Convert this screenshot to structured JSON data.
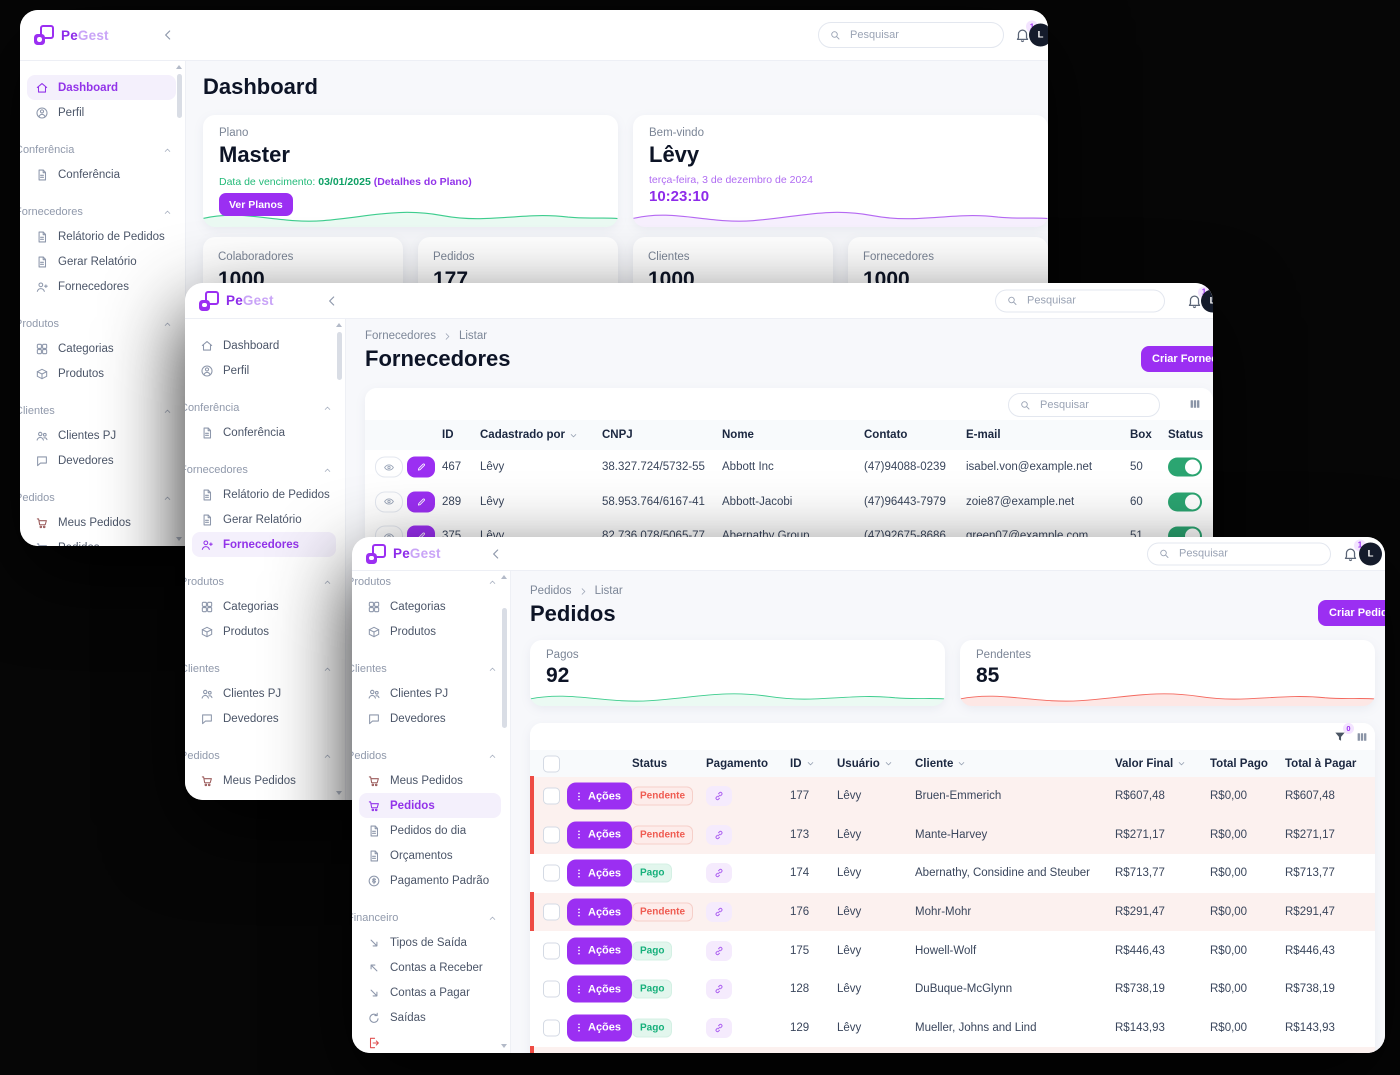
{
  "chrome": {
    "logo_bold": "Pe",
    "logo_light": "Gest",
    "search_placeholder": "Pesquisar",
    "notification_count": "1",
    "avatar_initial": "L"
  },
  "colors": {
    "accent": "#9b2ff2",
    "green": "#22ba78",
    "red": "#ee4b43",
    "toggle_green": "#2ba571",
    "spark_green": "#3ecd8e",
    "spark_purple": "#b569f2",
    "spark_red": "#f4695f"
  },
  "sidebar": {
    "groups": [
      {
        "header": null,
        "items": [
          {
            "label": "Dashboard",
            "icon": "home"
          },
          {
            "label": "Perfil",
            "icon": "user"
          }
        ]
      },
      {
        "header": "Conferência",
        "items": [
          {
            "label": "Conferência",
            "icon": "doc"
          }
        ]
      },
      {
        "header": "Fornecedores",
        "items": [
          {
            "label": "Relátorio de Pedidos",
            "icon": "doc"
          },
          {
            "label": "Gerar Relatório",
            "icon": "doc"
          },
          {
            "label": "Fornecedores",
            "icon": "user-plus"
          }
        ]
      },
      {
        "header": "Produtos",
        "items": [
          {
            "label": "Categorias",
            "icon": "grid"
          },
          {
            "label": "Produtos",
            "icon": "box"
          }
        ]
      },
      {
        "header": "Clientes",
        "items": [
          {
            "label": "Clientes PJ",
            "icon": "users"
          },
          {
            "label": "Devedores",
            "icon": "chat"
          }
        ]
      },
      {
        "header": "Pedidos",
        "items": [
          {
            "label": "Meus Pedidos",
            "icon": "cart"
          },
          {
            "label": "Pedidos",
            "icon": "cart"
          },
          {
            "label": "Pedidos do dia",
            "icon": "doc"
          },
          {
            "label": "Orçamentos",
            "icon": "doc"
          },
          {
            "label": "Pagamento Padrão",
            "icon": "coin"
          }
        ]
      },
      {
        "header": "Financeiro",
        "items": [
          {
            "label": "Tipos de Saída",
            "icon": "out"
          },
          {
            "label": "Contas a Receber",
            "icon": "in"
          },
          {
            "label": "Contas a Pagar",
            "icon": "out"
          },
          {
            "label": "Saídas",
            "icon": "refresh"
          },
          {
            "label": "",
            "icon": "exit",
            "accent": "red"
          }
        ]
      }
    ]
  },
  "dashboard_window": {
    "active_item": "Dashboard",
    "page_title": "Dashboard",
    "plan_card": {
      "label": "Plano",
      "value": "Master",
      "due_label": "Data de vencimento:",
      "due_date": "03/01/2025",
      "details_link": "(Detalhes do Plano)",
      "button_label": "Ver Planos"
    },
    "welcome_card": {
      "label": "Bem-vindo",
      "value": "Lêvy",
      "date": "terça-feira, 3 de dezembro de 2024",
      "time": "10:23:10"
    },
    "stat_cards": [
      {
        "label": "Colaboradores",
        "value": "1000"
      },
      {
        "label": "Pedidos",
        "value": "177"
      },
      {
        "label": "Clientes",
        "value": "1000"
      },
      {
        "label": "Fornecedores",
        "value": "1000"
      }
    ]
  },
  "fornecedores_window": {
    "active_item": "Fornecedores",
    "breadcrumb": {
      "parent": "Fornecedores",
      "current": "Listar"
    },
    "page_title": "Fornecedores",
    "create_button_label": "Criar Fornecedor",
    "table": {
      "search_placeholder": "Pesquisar",
      "columns": [
        "ID",
        "Cadastrado por",
        "CNPJ",
        "Nome",
        "Contato",
        "E-mail",
        "Box",
        "Status"
      ],
      "rows": [
        {
          "id": "467",
          "cadastrado_por": "Lêvy",
          "cnpj": "38.327.724/5732-55",
          "nome": "Abbott Inc",
          "contato": "(47)94088-0239",
          "email": "isabel.von@example.net",
          "box": "50",
          "status_on": true
        },
        {
          "id": "289",
          "cadastrado_por": "Lêvy",
          "cnpj": "58.953.764/6167-41",
          "nome": "Abbott-Jacobi",
          "contato": "(47)96443-7979",
          "email": "zoie87@example.net",
          "box": "60",
          "status_on": true
        },
        {
          "id": "375",
          "cadastrado_por": "Lêvy",
          "cnpj": "82.736.078/5065-77",
          "nome": "Abernathy Group",
          "contato": "(47)92675-8686",
          "email": "green07@example.com",
          "box": "51",
          "status_on": true
        }
      ]
    }
  },
  "pedidos_window": {
    "active_item": "Pedidos",
    "breadcrumb": {
      "parent": "Pedidos",
      "current": "Listar"
    },
    "page_title": "Pedidos",
    "create_button_label": "Criar Pedido",
    "stat_cards": [
      {
        "label": "Pagos",
        "value": "92",
        "trend": "green"
      },
      {
        "label": "Pendentes",
        "value": "85",
        "trend": "red"
      }
    ],
    "filter_badge": "0",
    "table": {
      "actions_label": "Ações",
      "columns": [
        "Status",
        "Pagamento",
        "ID",
        "Usuário",
        "Cliente",
        "Valor Final",
        "Total Pago",
        "Total à Pagar"
      ],
      "rows": [
        {
          "status": "Pendente",
          "id": "177",
          "usuario": "Lêvy",
          "cliente": "Bruen-Emmerich",
          "valor_final": "R$607,48",
          "total_pago": "R$0,00",
          "total_a_pagar": "R$607,48"
        },
        {
          "status": "Pendente",
          "id": "173",
          "usuario": "Lêvy",
          "cliente": "Mante-Harvey",
          "valor_final": "R$271,17",
          "total_pago": "R$0,00",
          "total_a_pagar": "R$271,17"
        },
        {
          "status": "Pago",
          "id": "174",
          "usuario": "Lêvy",
          "cliente": "Abernathy, Considine and Steuber",
          "valor_final": "R$713,77",
          "total_pago": "R$0,00",
          "total_a_pagar": "R$713,77"
        },
        {
          "status": "Pendente",
          "id": "176",
          "usuario": "Lêvy",
          "cliente": "Mohr-Mohr",
          "valor_final": "R$291,47",
          "total_pago": "R$0,00",
          "total_a_pagar": "R$291,47"
        },
        {
          "status": "Pago",
          "id": "175",
          "usuario": "Lêvy",
          "cliente": "Howell-Wolf",
          "valor_final": "R$446,43",
          "total_pago": "R$0,00",
          "total_a_pagar": "R$446,43"
        },
        {
          "status": "Pago",
          "id": "128",
          "usuario": "Lêvy",
          "cliente": "DuBuque-McGlynn",
          "valor_final": "R$738,19",
          "total_pago": "R$0,00",
          "total_a_pagar": "R$738,19"
        },
        {
          "status": "Pago",
          "id": "129",
          "usuario": "Lêvy",
          "cliente": "Mueller, Johns and Lind",
          "valor_final": "R$143,93",
          "total_pago": "R$0,00",
          "total_a_pagar": "R$143,93"
        }
      ]
    }
  }
}
